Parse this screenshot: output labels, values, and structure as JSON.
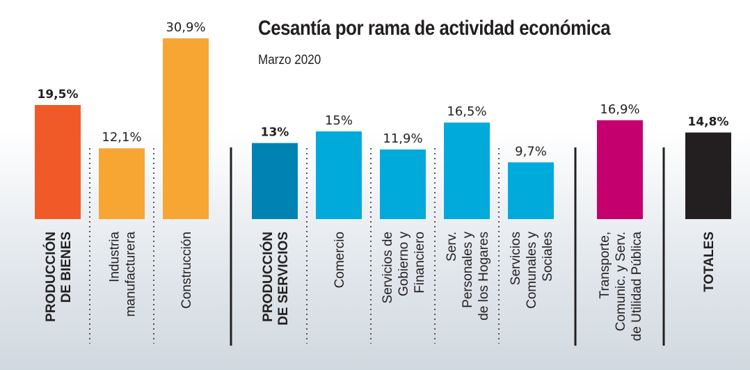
{
  "chart_data": {
    "type": "bar",
    "title": "Cesantía por rama de actividad económica",
    "subtitle": "Marzo 2020",
    "xlabel": "",
    "ylabel": "",
    "ylim": [
      0,
      31
    ],
    "grid": false,
    "legend": "none",
    "unit": "%",
    "categories": [
      {
        "label": [
          "PRODUCCIÓN",
          "DE BIENES"
        ],
        "value": 19.5,
        "value_label": "19,5%",
        "color": "#f05a28",
        "bold": true,
        "group": "bienes"
      },
      {
        "label": [
          "Industria",
          "manufacturera"
        ],
        "value": 12.1,
        "value_label": "12,1%",
        "color": "#f7a533",
        "bold": false,
        "group": "bienes"
      },
      {
        "label": [
          "Construcción"
        ],
        "value": 30.9,
        "value_label": "30,9%",
        "color": "#f7a533",
        "bold": false,
        "group": "bienes"
      },
      {
        "label": [
          "PRODUCCIÓN",
          "DE SERVICIOS"
        ],
        "value": 13.0,
        "value_label": "13%",
        "color": "#0083b3",
        "bold": true,
        "group": "servicios"
      },
      {
        "label": [
          "Comercio"
        ],
        "value": 15.0,
        "value_label": "15%",
        "color": "#00abdc",
        "bold": false,
        "group": "servicios"
      },
      {
        "label": [
          "Servicios de",
          "Gobierno y",
          "Financiero"
        ],
        "value": 11.9,
        "value_label": "11,9%",
        "color": "#00abdc",
        "bold": false,
        "group": "servicios"
      },
      {
        "label": [
          "Serv.",
          "Personales y",
          "de los Hogares"
        ],
        "value": 16.5,
        "value_label": "16,5%",
        "color": "#00abdc",
        "bold": false,
        "group": "servicios"
      },
      {
        "label": [
          "Servicios",
          "Comunales y",
          "Sociales"
        ],
        "value": 9.7,
        "value_label": "9,7%",
        "color": "#00abdc",
        "bold": false,
        "group": "servicios"
      },
      {
        "label": [
          "Transporte,",
          "Comunic. y Serv.",
          "de Utilidad Pública"
        ],
        "value": 16.9,
        "value_label": "16,9%",
        "color": "#c4006f",
        "bold": false,
        "group": "transporte"
      },
      {
        "label": [
          "TOTALES"
        ],
        "value": 14.8,
        "value_label": "14,8%",
        "color": "#231f20",
        "bold": true,
        "group": "totales"
      }
    ],
    "separators": [
      "dotted",
      "dotted",
      "solid",
      "dotted",
      "dotted",
      "dotted",
      "dotted",
      "solid",
      "solid"
    ]
  }
}
